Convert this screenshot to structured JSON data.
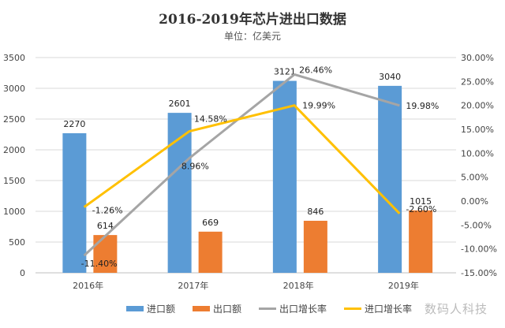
{
  "chart_data": {
    "type": "bar+line",
    "title": "2016-2019年芯片进出口数据",
    "subtitle": "单位：亿美元",
    "categories": [
      "2016年",
      "2017年",
      "2018年",
      "2019年"
    ],
    "y_left": {
      "range": [
        0,
        3500
      ],
      "ticks": [
        0,
        500,
        1000,
        1500,
        2000,
        2500,
        3000,
        3500
      ]
    },
    "y_right": {
      "range": [
        -15,
        30
      ],
      "ticks": [
        "-15.00%",
        "-10.00%",
        "-5.00%",
        "0.00%",
        "5.00%",
        "10.00%",
        "15.00%",
        "20.00%",
        "25.00%",
        "30.00%"
      ]
    },
    "grid": true,
    "legend_placement": "bottom",
    "series": [
      {
        "name": "进口额",
        "type": "bar",
        "axis": "left",
        "color": "#5B9BD5",
        "values": [
          2270,
          2601,
          3121,
          3040
        ],
        "labels": [
          "2270",
          "2601",
          "3121",
          "3040"
        ]
      },
      {
        "name": "出口额",
        "type": "bar",
        "axis": "left",
        "color": "#ED7D31",
        "values": [
          614,
          669,
          846,
          1015
        ],
        "labels": [
          "614",
          "669",
          "846",
          "1015"
        ]
      },
      {
        "name": "出口增长率",
        "type": "line",
        "axis": "right",
        "color": "#A5A5A5",
        "values": [
          -11.4,
          8.96,
          26.46,
          19.98
        ],
        "labels": [
          "-11.40%",
          "8.96%",
          "26.46%",
          "19.98%"
        ]
      },
      {
        "name": "进口增长率",
        "type": "line",
        "axis": "right",
        "color": "#FFC000",
        "values": [
          -1.26,
          14.58,
          19.99,
          -2.6
        ],
        "labels": [
          "-1.26%",
          "14.58%",
          "19.99%",
          "-2.60%"
        ]
      }
    ]
  },
  "watermark": "数码人科技"
}
